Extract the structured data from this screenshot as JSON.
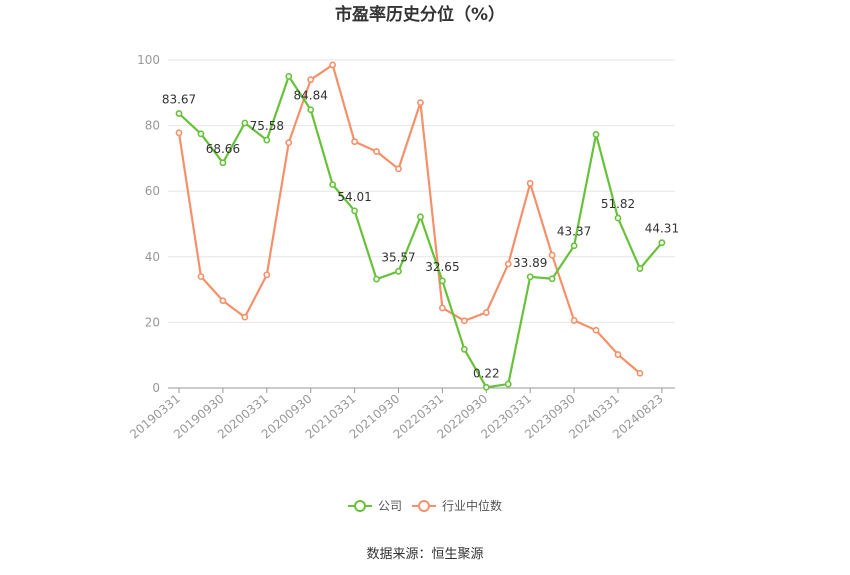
{
  "chart_data": {
    "type": "line",
    "title": "市盈率历史分位（%）",
    "source": "数据来源：恒生聚源",
    "ylim": [
      0,
      100
    ],
    "yticks": [
      0,
      20,
      40,
      60,
      80,
      100
    ],
    "x_tick_labels": [
      "20190331",
      "20190930",
      "20200331",
      "20200930",
      "20210331",
      "20210930",
      "20220331",
      "20220930",
      "20230331",
      "20230930",
      "20240331",
      "20240823"
    ],
    "x_tick_positions": [
      0,
      2,
      4,
      6,
      8,
      10,
      12,
      14,
      16,
      18,
      20,
      22
    ],
    "grid": true,
    "legend_position": "bottom",
    "series": [
      {
        "name": "公司",
        "color": "#67c23a",
        "values": [
          83.67,
          77.5,
          68.66,
          80.8,
          75.58,
          95.0,
          84.84,
          62.0,
          54.01,
          33.2,
          35.57,
          52.2,
          32.65,
          11.8,
          0.22,
          1.2,
          33.89,
          33.3,
          43.37,
          77.3,
          51.82,
          36.4,
          44.31
        ],
        "labels": {
          "0": "83.67",
          "2": "68.66",
          "4": "75.58",
          "6": "84.84",
          "8": "54.01",
          "10": "35.57",
          "12": "32.65",
          "14": "0.22",
          "16": "33.89",
          "18": "43.37",
          "20": "51.82",
          "22": "44.31"
        }
      },
      {
        "name": "行业中位数",
        "color": "#f4916a",
        "values": [
          77.8,
          34.0,
          26.6,
          21.6,
          34.5,
          74.8,
          94.0,
          98.5,
          75.1,
          72.1,
          66.8,
          87.0,
          24.4,
          20.5,
          23.0,
          37.8,
          62.4,
          40.5,
          20.6,
          17.6,
          10.2,
          4.5
        ]
      }
    ]
  }
}
